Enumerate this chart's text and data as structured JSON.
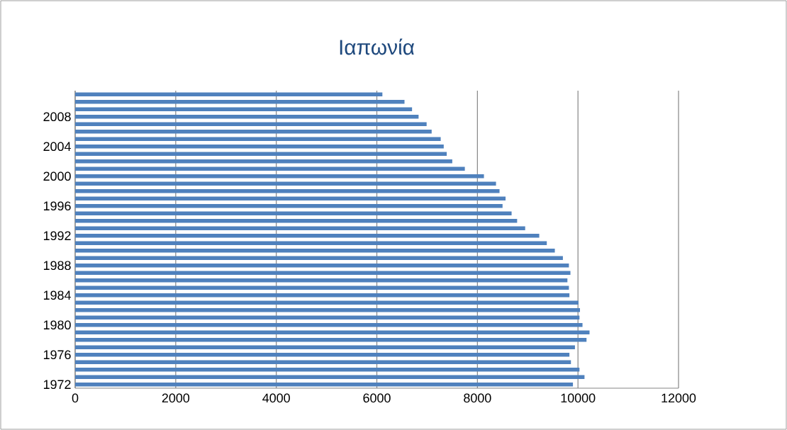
{
  "chart_data": {
    "type": "bar",
    "orientation": "horizontal",
    "title": "Ιαπωνία",
    "categories": [
      null,
      null,
      null,
      "2008",
      null,
      null,
      null,
      "2004",
      null,
      null,
      null,
      "2000",
      null,
      null,
      null,
      "1996",
      null,
      null,
      null,
      "1992",
      null,
      null,
      null,
      "1988",
      null,
      null,
      null,
      "1984",
      null,
      null,
      null,
      "1980",
      null,
      null,
      null,
      "1976",
      null,
      null,
      null,
      "1972"
    ],
    "values": [
      6110,
      6550,
      6700,
      6830,
      6990,
      7090,
      7270,
      7330,
      7390,
      7500,
      7750,
      8130,
      8370,
      8440,
      8560,
      8500,
      8680,
      8790,
      8950,
      9230,
      9380,
      9540,
      9700,
      9820,
      9850,
      9790,
      9820,
      9830,
      10010,
      10040,
      10030,
      10090,
      10230,
      10170,
      9940,
      9830,
      9860,
      10030,
      10130,
      9900
    ],
    "color": "#4f81bd",
    "xlim": [
      0,
      12000
    ],
    "xticks": [
      0,
      2000,
      4000,
      6000,
      8000,
      10000,
      12000
    ],
    "grid": "x"
  }
}
